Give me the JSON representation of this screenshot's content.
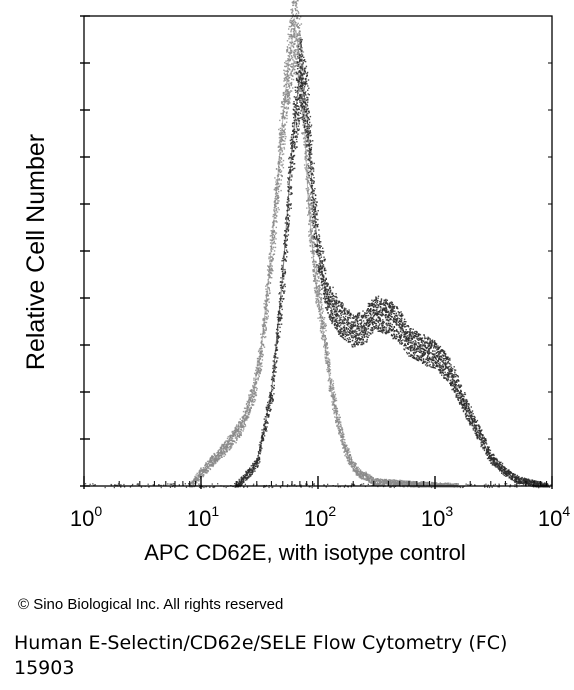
{
  "chart_data": {
    "type": "area",
    "title": "",
    "xlabel": "APC CD62E, with isotype control",
    "ylabel": "Relative Cell Number",
    "x_scale": "log",
    "xlim": [
      1,
      10000
    ],
    "ylim": [
      0,
      1
    ],
    "x_ticks": [
      {
        "base": "10",
        "exp": "0"
      },
      {
        "base": "10",
        "exp": "1"
      },
      {
        "base": "10",
        "exp": "2"
      },
      {
        "base": "10",
        "exp": "3"
      },
      {
        "base": "10",
        "exp": "4"
      }
    ],
    "grid": false,
    "legend": "none",
    "series": [
      {
        "color": "#8a8a8a",
        "x": [
          8,
          10,
          13,
          17,
          22,
          28,
          33,
          38,
          44,
          50,
          56,
          60,
          65,
          70,
          76,
          82,
          90,
          100,
          115,
          130,
          150,
          170,
          190,
          220,
          260,
          300,
          400,
          700,
          1500
        ],
        "y": [
          0.0,
          0.03,
          0.06,
          0.09,
          0.13,
          0.2,
          0.3,
          0.45,
          0.62,
          0.78,
          0.9,
          0.95,
          0.97,
          0.9,
          0.78,
          0.62,
          0.5,
          0.4,
          0.3,
          0.2,
          0.13,
          0.08,
          0.05,
          0.03,
          0.02,
          0.01,
          0.008,
          0.004,
          0.0
        ]
      },
      {
        "color": "#2a2a2a",
        "x": [
          20,
          30,
          40,
          50,
          60,
          70,
          80,
          90,
          100,
          120,
          150,
          200,
          250,
          300,
          400,
          500,
          600,
          800,
          1000,
          1300,
          1600,
          2000,
          2500,
          3000,
          4000,
          5000,
          7000,
          9000
        ],
        "y": [
          0.0,
          0.05,
          0.2,
          0.45,
          0.72,
          0.88,
          0.8,
          0.62,
          0.5,
          0.4,
          0.36,
          0.33,
          0.34,
          0.37,
          0.36,
          0.34,
          0.31,
          0.29,
          0.28,
          0.25,
          0.2,
          0.15,
          0.1,
          0.06,
          0.03,
          0.015,
          0.006,
          0.0
        ]
      }
    ]
  },
  "footer": {
    "copyright": "© Sino Biological Inc. All rights reserved",
    "caption": "Human E-Selectin/CD62e/SELE Flow Cytometry (FC) 15903"
  }
}
